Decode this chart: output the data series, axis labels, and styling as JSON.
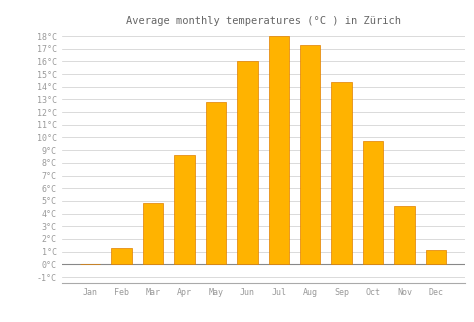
{
  "title": "Average monthly temperatures (°C ) in Zürich",
  "months": [
    "Jan",
    "Feb",
    "Mar",
    "Apr",
    "May",
    "Jun",
    "Jul",
    "Aug",
    "Sep",
    "Oct",
    "Nov",
    "Dec"
  ],
  "values": [
    0,
    1.3,
    4.8,
    8.6,
    12.8,
    16.0,
    18.0,
    17.3,
    14.4,
    9.7,
    4.6,
    1.1
  ],
  "bar_color": "#FFB300",
  "bar_edge_color": "#E08000",
  "background_color": "#FFFFFF",
  "plot_bg_color": "#FFFFFF",
  "ylim_min": -1,
  "ylim_max": 18,
  "yticks": [
    -1,
    0,
    1,
    2,
    3,
    4,
    5,
    6,
    7,
    8,
    9,
    10,
    11,
    12,
    13,
    14,
    15,
    16,
    17,
    18
  ],
  "grid_color": "#CCCCCC",
  "title_fontsize": 7.5,
  "tick_fontsize": 6,
  "tick_color": "#999999",
  "title_color": "#666666",
  "bar_width": 0.65,
  "spine_color": "#AAAAAA"
}
